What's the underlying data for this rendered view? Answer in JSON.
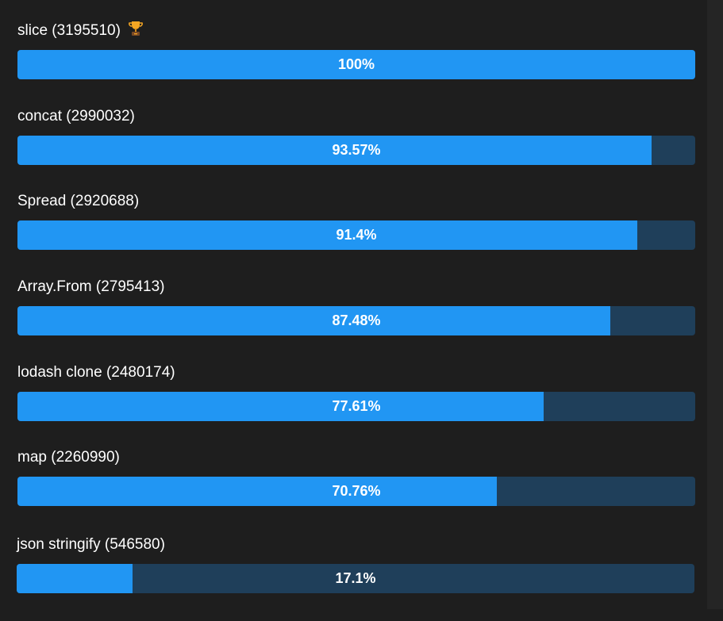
{
  "colors": {
    "fill": "#2196f3",
    "track": "#1f3f5a",
    "background": "#1e1e1e"
  },
  "items": [
    {
      "label": "slice (3195510)",
      "percent_label": "100%",
      "percent": 100,
      "icon": "trophy-icon"
    },
    {
      "label": "concat (2990032)",
      "percent_label": "93.57%",
      "percent": 93.57
    },
    {
      "label": "Spread (2920688)",
      "percent_label": "91.4%",
      "percent": 91.4
    },
    {
      "label": "Array.From (2795413)",
      "percent_label": "87.48%",
      "percent": 87.48
    },
    {
      "label": "lodash clone (2480174)",
      "percent_label": "77.61%",
      "percent": 77.61
    },
    {
      "label": "map (2260990)",
      "percent_label": "70.76%",
      "percent": 70.76
    },
    {
      "label": "json stringify (546580)",
      "percent_label": "17.1%",
      "percent": 17.1
    }
  ]
}
